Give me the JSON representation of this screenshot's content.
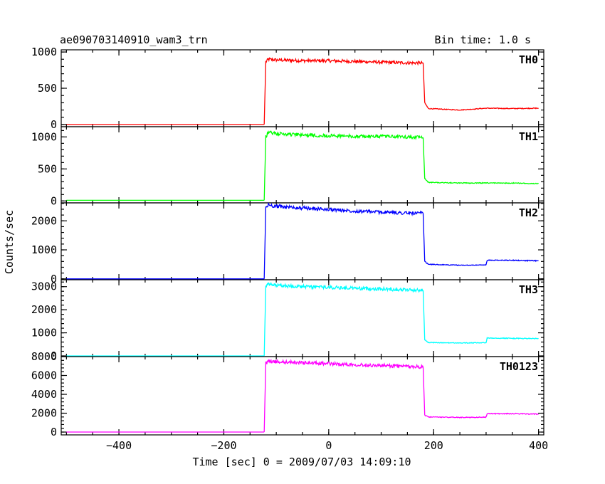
{
  "header": {
    "title": "ae090703140910_wam3_trn",
    "bin_time": "Bin time: 1.0 s"
  },
  "xlabel": "Time [sec] 0 = 2009/07/03 14:09:10",
  "ylabel": "Counts/sec",
  "chart_data": {
    "type": "line",
    "x_range": [
      -510,
      410
    ],
    "x_ticks": [
      -400,
      -200,
      0,
      200,
      400
    ],
    "x_tick_labels": [
      "−400",
      "−200",
      "0",
      "200",
      "400"
    ],
    "panels": [
      {
        "name": "TH0",
        "color": "#ff0000",
        "ylim": [
          -30,
          1030
        ],
        "y_ticks": [
          0,
          500,
          1000
        ],
        "y_tick_labels": [
          "0",
          "500",
          "1000"
        ],
        "segments": [
          {
            "x": [
              -500,
              -123
            ],
            "y": [
              0,
              0
            ]
          },
          {
            "x": [
              -123,
              -120,
              -115,
              -100,
              -50,
              0,
              50,
              100,
              150,
              180
            ],
            "y": [
              0,
              860,
              900,
              890,
              880,
              880,
              870,
              860,
              850,
              850
            ]
          },
          {
            "x": [
              180,
              183,
              190,
              250,
              300,
              350,
              400
            ],
            "y": [
              850,
              300,
              220,
              200,
              225,
              220,
              225
            ]
          }
        ]
      },
      {
        "name": "TH1",
        "color": "#00ff00",
        "ylim": [
          -30,
          1160
        ],
        "y_ticks": [
          0,
          500,
          1000
        ],
        "y_tick_labels": [
          "0",
          "500",
          "1000"
        ],
        "segments": [
          {
            "x": [
              -500,
              -123
            ],
            "y": [
              10,
              10
            ]
          },
          {
            "x": [
              -123,
              -120,
              -115,
              -100,
              -50,
              0,
              50,
              100,
              150,
              180
            ],
            "y": [
              10,
              1000,
              1070,
              1050,
              1030,
              1020,
              1010,
              1010,
              1000,
              990
            ]
          },
          {
            "x": [
              180,
              183,
              190,
              250,
              300,
              350,
              400
            ],
            "y": [
              990,
              350,
              290,
              280,
              280,
              280,
              270
            ]
          }
        ]
      },
      {
        "name": "TH2",
        "color": "#0000ff",
        "ylim": [
          -30,
          2620
        ],
        "y_ticks": [
          0,
          1000,
          2000
        ],
        "y_tick_labels": [
          "0",
          "1000",
          "2000"
        ],
        "segments": [
          {
            "x": [
              -500,
              -123
            ],
            "y": [
              0,
              0
            ]
          },
          {
            "x": [
              -123,
              -120,
              -115,
              -100,
              -50,
              0,
              50,
              100,
              150,
              180
            ],
            "y": [
              0,
              2450,
              2550,
              2500,
              2440,
              2390,
              2340,
              2300,
              2270,
              2260
            ]
          },
          {
            "x": [
              180,
              183,
              190,
              250,
              300,
              302,
              350,
              400
            ],
            "y": [
              2260,
              600,
              500,
              470,
              480,
              640,
              640,
              620
            ]
          }
        ]
      },
      {
        "name": "TH3",
        "color": "#00ffff",
        "ylim": [
          -30,
          3300
        ],
        "y_ticks": [
          0,
          1000,
          2000,
          3000
        ],
        "y_tick_labels": [
          "0",
          "1000",
          "2000",
          "3000"
        ],
        "segments": [
          {
            "x": [
              -500,
              -123
            ],
            "y": [
              0,
              0
            ]
          },
          {
            "x": [
              -123,
              -120,
              -115,
              -100,
              -50,
              0,
              50,
              100,
              150,
              180
            ],
            "y": [
              0,
              3000,
              3100,
              3050,
              3000,
              2970,
              2930,
              2900,
              2860,
              2840
            ]
          },
          {
            "x": [
              180,
              183,
              190,
              250,
              300,
              302,
              350,
              400
            ],
            "y": [
              2840,
              700,
              580,
              560,
              570,
              780,
              760,
              750
            ]
          }
        ]
      },
      {
        "name": "TH0123",
        "color": "#ff00ff",
        "ylim": [
          -300,
          8000
        ],
        "y_ticks": [
          0,
          2000,
          4000,
          6000,
          8000
        ],
        "y_tick_labels": [
          "0",
          "2000",
          "4000",
          "6000",
          "8000"
        ],
        "segments": [
          {
            "x": [
              -500,
              -123
            ],
            "y": [
              0,
              0
            ]
          },
          {
            "x": [
              -123,
              -120,
              -115,
              -100,
              -50,
              0,
              50,
              100,
              150,
              180
            ],
            "y": [
              0,
              7300,
              7500,
              7450,
              7350,
              7250,
              7150,
              7050,
              6950,
              6900
            ]
          },
          {
            "x": [
              180,
              183,
              190,
              250,
              300,
              302,
              350,
              400
            ],
            "y": [
              6900,
              1800,
              1600,
              1550,
              1580,
              1950,
              1950,
              1900
            ]
          }
        ]
      }
    ]
  }
}
